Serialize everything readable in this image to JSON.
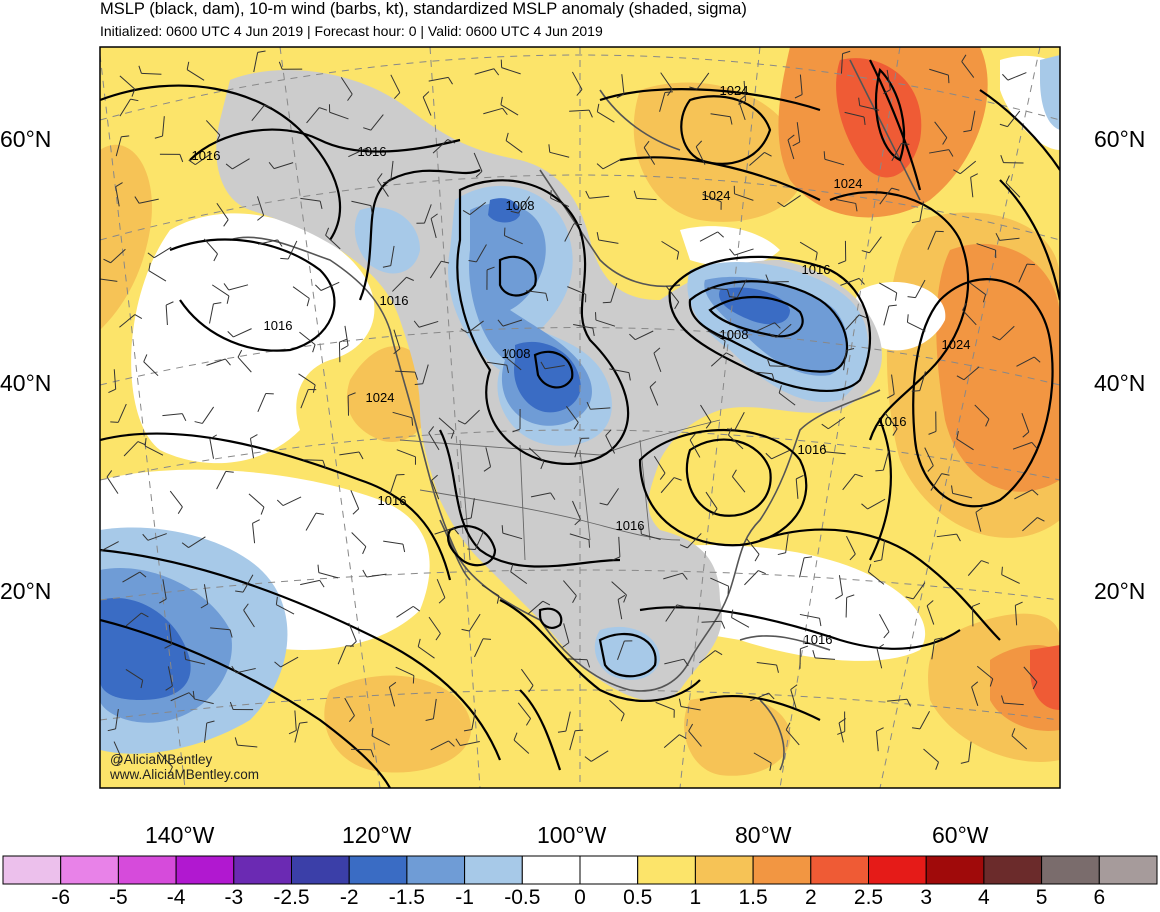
{
  "header": {
    "title": "MSLP (black, dam), 10-m wind (barbs, kt), standardized MSLP anomaly (shaded, sigma)",
    "subtitle": "Initialized: 0600 UTC 4 Jun 2019 | Forecast hour: 0 | Valid: 0600 UTC 4 Jun 2019"
  },
  "map": {
    "lat_labels": [
      "60°N",
      "40°N",
      "20°N"
    ],
    "lon_labels": [
      "140°W",
      "120°W",
      "100°W",
      "80°W",
      "60°W"
    ],
    "isobar_labels": [
      "1016",
      "1016",
      "1016",
      "1016",
      "1016",
      "1008",
      "1008",
      "1008",
      "1024",
      "1024",
      "1024",
      "1024",
      "1024",
      "1016",
      "1016",
      "1016",
      "1016",
      "1016"
    ]
  },
  "colorbar": {
    "labels": [
      "-6",
      "-5",
      "-4",
      "-3",
      "-2.5",
      "-2",
      "-1.5",
      "-1",
      "-0.5",
      "0",
      "0.5",
      "1",
      "1.5",
      "2",
      "2.5",
      "3",
      "4",
      "5",
      "6"
    ],
    "colors": [
      "#ecc0ec",
      "#e882e8",
      "#d64bdb",
      "#b118d0",
      "#6b2ab3",
      "#3b3fa8",
      "#3a6cc4",
      "#6f9cd6",
      "#a7c9e8",
      "#ffffff",
      "#ffffff",
      "#fce46a",
      "#f6c356",
      "#f29642",
      "#ef5b35",
      "#e51b18",
      "#a00a0a",
      "#6b2b2b",
      "#7a6c6c",
      "#a69b9b"
    ]
  },
  "watermark": {
    "line1": "@AliciaMBentley",
    "line2": "www.AliciaMBentley.com"
  }
}
